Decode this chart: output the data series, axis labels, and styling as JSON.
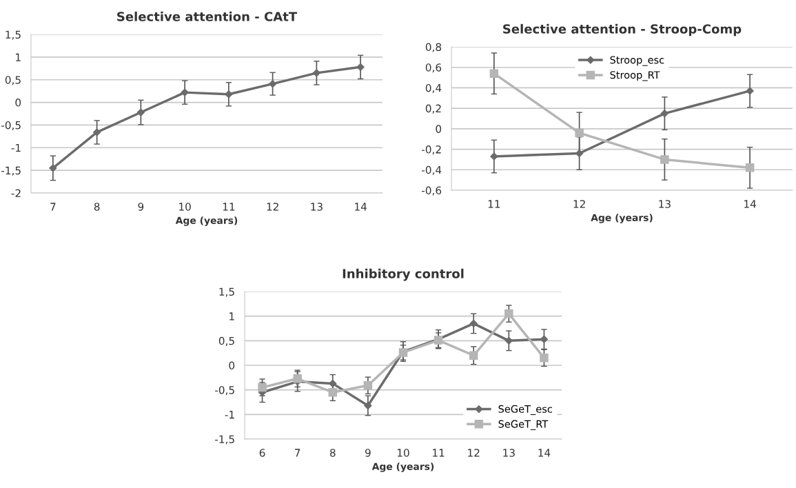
{
  "chart_data": [
    {
      "type": "line",
      "title": "Selective attention - CAtT",
      "xlabel": "Age (years)",
      "categories": [
        "7",
        "8",
        "9",
        "10",
        "11",
        "12",
        "13",
        "14"
      ],
      "series": [
        {
          "color": "#6b6b6b",
          "marker": "diamond",
          "values": [
            -1.45,
            -0.66,
            -0.22,
            0.22,
            0.18,
            0.41,
            0.65,
            0.78
          ],
          "errors": [
            0.27,
            0.26,
            0.27,
            0.26,
            0.26,
            0.25,
            0.26,
            0.26
          ]
        }
      ],
      "ylim": [
        -2,
        1.5
      ],
      "yticks": [
        {
          "value": -2,
          "label": "-2"
        },
        {
          "value": -1.5,
          "label": "-1,5"
        },
        {
          "value": -1,
          "label": "-1"
        },
        {
          "value": -0.5,
          "label": "-0,5"
        },
        {
          "value": 0,
          "label": "0"
        },
        {
          "value": 0.5,
          "label": "0,5"
        },
        {
          "value": 1,
          "label": "1"
        },
        {
          "value": 1.5,
          "label": "1,5"
        }
      ],
      "grid": "y"
    },
    {
      "type": "line",
      "title": "Selective attention - Stroop-Comp",
      "xlabel": "Age (years)",
      "categories": [
        "11",
        "12",
        "13",
        "14"
      ],
      "series": [
        {
          "name": "Stroop_esc",
          "color": "#6b6b6b",
          "marker": "diamond",
          "values": [
            -0.27,
            -0.24,
            0.15,
            0.37
          ],
          "errors": [
            0.16,
            0.16,
            0.16,
            0.16
          ]
        },
        {
          "name": "Stroop_RT",
          "color": "#b5b5b5",
          "marker": "square",
          "values": [
            0.54,
            -0.04,
            -0.3,
            -0.38
          ],
          "errors": [
            0.2,
            0.2,
            0.2,
            0.2
          ]
        }
      ],
      "ylim": [
        -0.6,
        0.8
      ],
      "yticks": [
        {
          "value": -0.6,
          "label": "-0,6"
        },
        {
          "value": -0.4,
          "label": "-0,4"
        },
        {
          "value": -0.2,
          "label": "-0,2"
        },
        {
          "value": 0,
          "label": "0"
        },
        {
          "value": 0.2,
          "label": "0,2"
        },
        {
          "value": 0.4,
          "label": "0,4"
        },
        {
          "value": 0.6,
          "label": "0,6"
        },
        {
          "value": 0.8,
          "label": "0,8"
        }
      ],
      "grid": "y",
      "legend": "top"
    },
    {
      "type": "line",
      "title": "Inhibitory control",
      "xlabel": "Age (years)",
      "categories": [
        "6",
        "7",
        "8",
        "9",
        "10",
        "11",
        "12",
        "13",
        "14"
      ],
      "series": [
        {
          "name": "SeGeT_esc",
          "color": "#6b6b6b",
          "marker": "diamond",
          "values": [
            -0.55,
            -0.33,
            -0.37,
            -0.82,
            0.28,
            0.53,
            0.85,
            0.5,
            0.53
          ],
          "errors": [
            0.2,
            0.2,
            0.18,
            0.2,
            0.2,
            0.19,
            0.2,
            0.2,
            0.2
          ]
        },
        {
          "name": "SeGeT_RT",
          "color": "#b5b5b5",
          "marker": "square",
          "values": [
            -0.45,
            -0.27,
            -0.55,
            -0.41,
            0.26,
            0.51,
            0.2,
            1.05,
            0.15
          ],
          "errors": [
            0.17,
            0.17,
            0.17,
            0.17,
            0.15,
            0.15,
            0.18,
            0.17,
            0.17
          ]
        }
      ],
      "ylim": [
        -1.5,
        1.5
      ],
      "yticks": [
        {
          "value": -1.5,
          "label": "-1,5"
        },
        {
          "value": -1,
          "label": "-1"
        },
        {
          "value": -0.5,
          "label": "-0,5"
        },
        {
          "value": 0,
          "label": "0"
        },
        {
          "value": 0.5,
          "label": "0,5"
        },
        {
          "value": 1,
          "label": "1"
        },
        {
          "value": 1.5,
          "label": "1,5"
        }
      ],
      "grid": "y",
      "legend": "lower right"
    }
  ]
}
